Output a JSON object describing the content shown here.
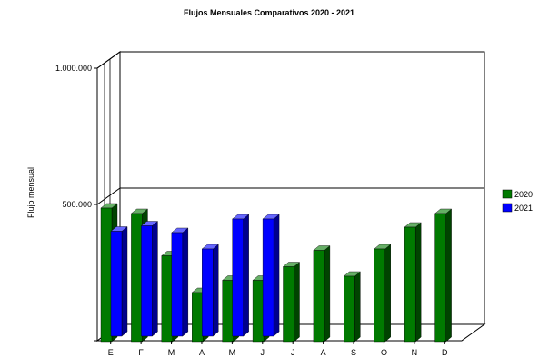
{
  "chart_data": {
    "type": "bar",
    "title": "Flujos Mensuales Comparativos 2020 - 2021",
    "xlabel": "",
    "ylabel": "Flujo mensual",
    "categories": [
      "E",
      "F",
      "M",
      "A",
      "M",
      "J",
      "J",
      "A",
      "S",
      "O",
      "N",
      "D"
    ],
    "ylim": [
      0,
      1000000
    ],
    "yticks": [
      {
        "value": 500000,
        "label": "500.000"
      },
      {
        "value": 1000000,
        "label": "1.000.000"
      }
    ],
    "series": [
      {
        "name": "2020",
        "color": "#007a00",
        "values": [
          490000,
          470000,
          315000,
          180000,
          225000,
          225000,
          275000,
          335000,
          240000,
          340000,
          420000,
          470000
        ]
      },
      {
        "name": "2021",
        "color": "#0000ff",
        "values": [
          385000,
          405000,
          380000,
          320000,
          430000,
          430000,
          null,
          null,
          null,
          null,
          null,
          null
        ]
      }
    ],
    "grid": true,
    "legend_position": "right",
    "style": "3d"
  }
}
